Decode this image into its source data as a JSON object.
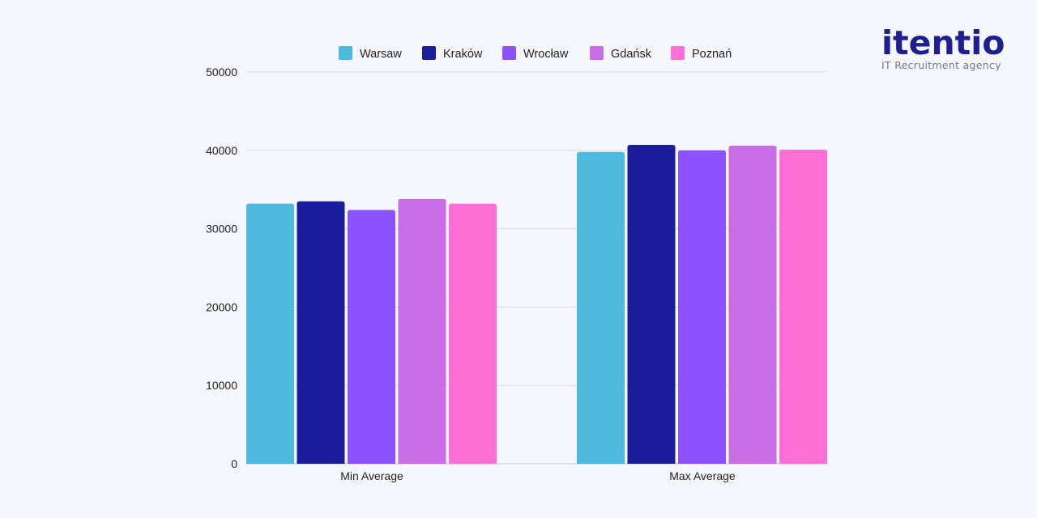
{
  "logo": {
    "name": "itentio",
    "tagline": "IT Recruitment agency"
  },
  "chart_data": {
    "type": "bar",
    "categories": [
      "Min Average",
      "Max Average"
    ],
    "series": [
      {
        "name": "Warsaw",
        "color": "#4dbadd",
        "values": [
          33200,
          39800
        ]
      },
      {
        "name": "Kraków",
        "color": "#1b1d9a",
        "values": [
          33500,
          40700
        ]
      },
      {
        "name": "Wrocław",
        "color": "#8c52ff",
        "values": [
          32400,
          40000
        ]
      },
      {
        "name": "Gdańsk",
        "color": "#c96de6",
        "values": [
          33800,
          40600
        ]
      },
      {
        "name": "Poznań",
        "color": "#ff6fd6",
        "values": [
          33200,
          40100
        ]
      }
    ],
    "ylim": [
      0,
      50000
    ],
    "yticks": [
      "0",
      "10000",
      "20000",
      "30000",
      "40000",
      "50000"
    ],
    "grid": true,
    "legend": "top"
  }
}
